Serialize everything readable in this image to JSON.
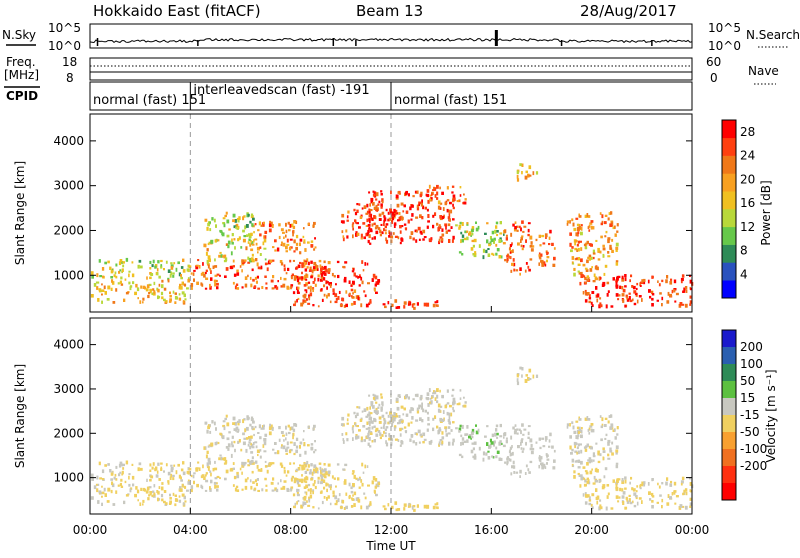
{
  "header": {
    "site": "Hokkaido East (fitACF)",
    "beam": "Beam 13",
    "date": "28/Aug/2017"
  },
  "noise_panel": {
    "left_label": "N.Sky",
    "right_label": "N.Search",
    "ticks_left": [
      "10^5",
      "10^0"
    ],
    "ticks_right": [
      "10^5",
      "10^0"
    ]
  },
  "freq_panel": {
    "left_label_1": "Freq.",
    "left_label_2": "[MHz]",
    "ticks_left": [
      "18",
      "8"
    ],
    "ticks_right": [
      "60",
      "0"
    ],
    "right_label": "Nave"
  },
  "cpid_panel": {
    "label": "CPID",
    "segments": [
      {
        "start_h": 0,
        "end_h": 4,
        "text": "normal (fast) 151"
      },
      {
        "start_h": 4,
        "end_h": 12,
        "text": "interleavedscan (fast) -191"
      },
      {
        "start_h": 12,
        "end_h": 24,
        "text": "normal (fast) 151"
      }
    ]
  },
  "power_panel": {
    "ylabel": "Slant Range [km]",
    "yticks": [
      "1000",
      "2000",
      "3000",
      "4000"
    ],
    "colorbar": {
      "label": "Power [dB]",
      "ticks": [
        "4",
        "8",
        "12",
        "16",
        "20",
        "24",
        "28"
      ],
      "colors": [
        "#0000ff",
        "#2a52be",
        "#2e8b57",
        "#66c84a",
        "#b8d83a",
        "#f0c020",
        "#f8a020",
        "#f07818",
        "#ff4010",
        "#ff0000"
      ]
    }
  },
  "velocity_panel": {
    "ylabel": "Slant Range [km]",
    "yticks": [
      "1000",
      "2000",
      "3000",
      "4000"
    ],
    "colorbar": {
      "label": "Velocity [m s⁻¹]",
      "ticks": [
        "200",
        "100",
        "50",
        "15",
        "-15",
        "-50",
        "-100",
        "-200"
      ],
      "colors": [
        "#1a1acc",
        "#2a5fb0",
        "#2e8b57",
        "#5cc040",
        "#c8c8c0",
        "#f0d060",
        "#f8a030",
        "#f07020",
        "#ff3010",
        "#ff0000"
      ]
    }
  },
  "xaxis": {
    "ticks": [
      "00:00",
      "04:00",
      "08:00",
      "12:00",
      "16:00",
      "20:00",
      "00:00"
    ],
    "label": "Time UT"
  },
  "chart_data": {
    "type": "heatmap",
    "title": "Hokkaido East (fitACF)",
    "subtitle": "Beam 13",
    "date": "28/Aug/2017",
    "xlabel": "Time UT",
    "ylabel": "Slant Range [km]",
    "xlim_hours": [
      0,
      24
    ],
    "ylim_km": [
      180,
      4600
    ],
    "x_tick_hours": [
      0,
      4,
      8,
      12,
      16,
      20,
      24
    ],
    "y_ticks_km": [
      1000,
      2000,
      3000,
      4000
    ],
    "cpid_changes_hours": [
      4,
      12
    ],
    "power_scale_db": [
      0,
      30
    ],
    "velocity_scale_ms": [
      -250,
      250
    ],
    "echo_regions": [
      {
        "t0": 0.0,
        "t1": 4.0,
        "r0": 900,
        "r1": 1350,
        "power": 14,
        "velocity": -5
      },
      {
        "t0": 0.0,
        "t1": 4.0,
        "r0": 380,
        "r1": 900,
        "power": 18,
        "velocity": -5
      },
      {
        "t0": 4.0,
        "t1": 9.5,
        "r0": 700,
        "r1": 1350,
        "power": 24,
        "velocity": -5
      },
      {
        "t0": 4.5,
        "t1": 7.0,
        "r0": 1300,
        "r1": 1800,
        "power": 16,
        "velocity": 5
      },
      {
        "t0": 4.5,
        "t1": 6.5,
        "r0": 1800,
        "r1": 2400,
        "power": 14,
        "velocity": 5
      },
      {
        "t0": 6.5,
        "t1": 9.0,
        "r0": 1500,
        "r1": 2200,
        "power": 22,
        "velocity": 5
      },
      {
        "t0": 8.0,
        "t1": 11.5,
        "r0": 300,
        "r1": 1300,
        "power": 26,
        "velocity": -5
      },
      {
        "t0": 10.0,
        "t1": 12.5,
        "r0": 1800,
        "r1": 2600,
        "power": 25,
        "velocity": 5
      },
      {
        "t0": 11.0,
        "t1": 14.5,
        "r0": 1700,
        "r1": 2900,
        "power": 27,
        "velocity": 10
      },
      {
        "t0": 11.5,
        "t1": 14.0,
        "r0": 250,
        "r1": 450,
        "power": 26,
        "velocity": -10
      },
      {
        "t0": 13.5,
        "t1": 15.0,
        "r0": 2600,
        "r1": 3000,
        "power": 22,
        "velocity": 5
      },
      {
        "t0": 14.5,
        "t1": 16.5,
        "r0": 1400,
        "r1": 2200,
        "power": 14,
        "velocity": 40
      },
      {
        "t0": 16.5,
        "t1": 17.5,
        "r0": 1000,
        "r1": 2200,
        "power": 24,
        "velocity": 30
      },
      {
        "t0": 17.5,
        "t1": 18.5,
        "r0": 1200,
        "r1": 2000,
        "power": 22,
        "velocity": 20
      },
      {
        "t0": 19.0,
        "t1": 21.0,
        "r0": 900,
        "r1": 2400,
        "power": 20,
        "velocity": 5
      },
      {
        "t0": 19.5,
        "t1": 24.0,
        "r0": 300,
        "r1": 1000,
        "power": 27,
        "velocity": -5
      },
      {
        "t0": 17.0,
        "t1": 17.8,
        "r0": 3100,
        "r1": 3500,
        "power": 18,
        "velocity": 5
      }
    ]
  }
}
